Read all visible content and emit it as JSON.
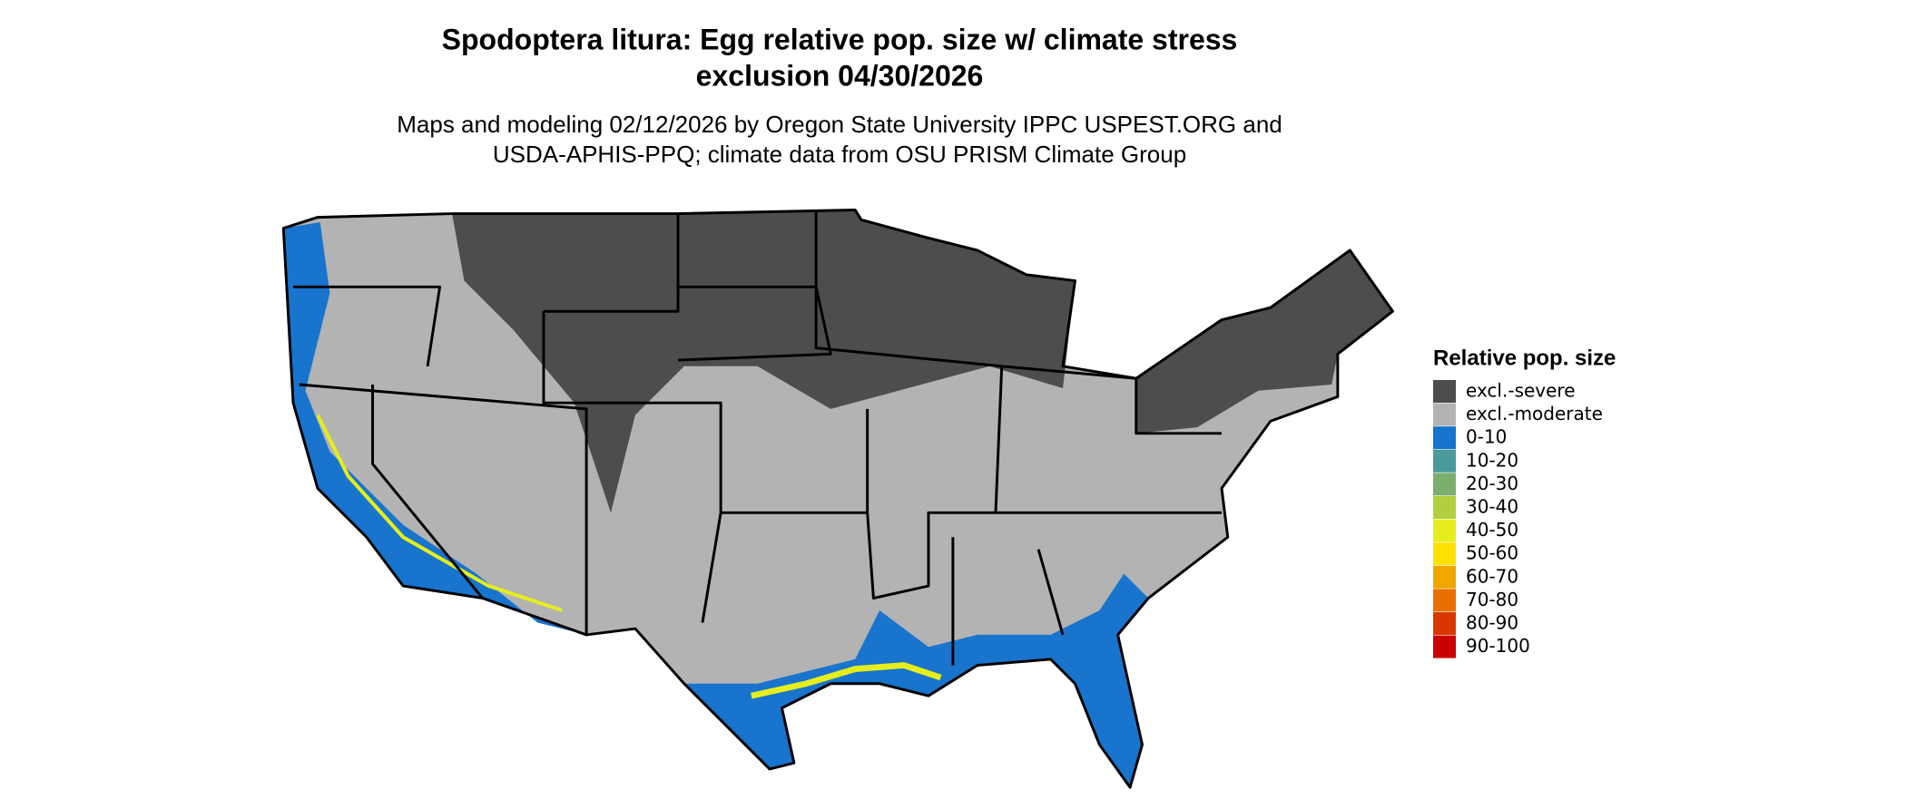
{
  "header": {
    "title": [
      "Spodoptera litura: Egg relative pop. size w/ climate stress",
      "exclusion 04/30/2026"
    ],
    "subtitle": [
      "Maps and modeling 02/12/2026 by Oregon State University IPPC USPEST.ORG and",
      "USDA-APHIS-PPQ; climate data from OSU PRISM Climate Group"
    ]
  },
  "legend": {
    "title": "Relative pop. size",
    "items": [
      {
        "label": "excl.-severe",
        "color": "#4d4d4d"
      },
      {
        "label": "excl.-moderate",
        "color": "#b3b3b3"
      },
      {
        "label": "0-10",
        "color": "#1874cd"
      },
      {
        "label": "10-20",
        "color": "#4a9a9a"
      },
      {
        "label": "20-30",
        "color": "#7cae6e"
      },
      {
        "label": "30-40",
        "color": "#b2d03d"
      },
      {
        "label": "40-50",
        "color": "#e5ee1c"
      },
      {
        "label": "50-60",
        "color": "#ffe000"
      },
      {
        "label": "60-70",
        "color": "#f0a800"
      },
      {
        "label": "70-80",
        "color": "#e87000"
      },
      {
        "label": "80-90",
        "color": "#d83800"
      },
      {
        "label": "90-100",
        "color": "#cc0000"
      }
    ]
  }
}
